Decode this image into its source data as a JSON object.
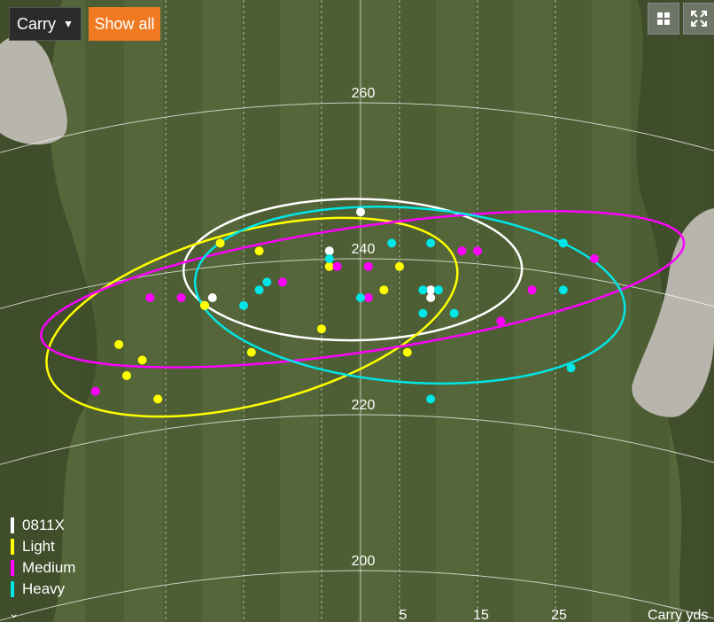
{
  "controls": {
    "metric_select": "Carry",
    "show_all": "Show all",
    "show_all_color": "#f07a22",
    "grid_icon": "grid-icon",
    "expand_icon": "expand-icon",
    "collapse_icon": "chevron-down-icon"
  },
  "chart_data": {
    "type": "scatter",
    "background": "golf fairway with bunkers",
    "xlabel": "Carry  yds",
    "x_ticks": [
      "5",
      "15",
      "25"
    ],
    "distance_arcs": [
      "260",
      "240",
      "220",
      "200"
    ],
    "series": [
      {
        "name": "0811X",
        "color": "#ffffff",
        "points": [
          [
            0,
            246
          ],
          [
            -4,
            241
          ],
          [
            -19,
            235
          ],
          [
            9,
            236
          ],
          [
            9,
            235
          ]
        ]
      },
      {
        "name": "Light",
        "color": "#ffff00",
        "points": [
          [
            -18,
            242
          ],
          [
            -13,
            241
          ],
          [
            -4,
            239
          ],
          [
            5,
            239
          ],
          [
            3,
            236
          ],
          [
            -20,
            234
          ],
          [
            -20,
            234
          ],
          [
            -5,
            231
          ],
          [
            -14,
            228
          ],
          [
            6,
            228
          ],
          [
            -31,
            229
          ],
          [
            -28,
            227
          ],
          [
            -30,
            225
          ],
          [
            -26,
            222
          ]
        ]
      },
      {
        "name": "Medium",
        "color": "#ff00ff",
        "points": [
          [
            1,
            239
          ],
          [
            -3,
            239
          ],
          [
            13,
            241
          ],
          [
            15,
            241
          ],
          [
            -10,
            237
          ],
          [
            -23,
            235
          ],
          [
            -27,
            235
          ],
          [
            1,
            235
          ],
          [
            22,
            236
          ],
          [
            18,
            232
          ],
          [
            30,
            240
          ],
          [
            -34,
            223
          ]
        ]
      },
      {
        "name": "Heavy",
        "color": "#00e5e5",
        "points": [
          [
            4,
            242
          ],
          [
            9,
            242
          ],
          [
            26,
            242
          ],
          [
            -4,
            240
          ],
          [
            -12,
            237
          ],
          [
            -13,
            236
          ],
          [
            -15,
            234
          ],
          [
            0,
            235
          ],
          [
            8,
            236
          ],
          [
            10,
            236
          ],
          [
            8,
            233
          ],
          [
            12,
            233
          ],
          [
            26,
            236
          ],
          [
            27,
            226
          ],
          [
            9,
            222
          ]
        ]
      }
    ]
  }
}
